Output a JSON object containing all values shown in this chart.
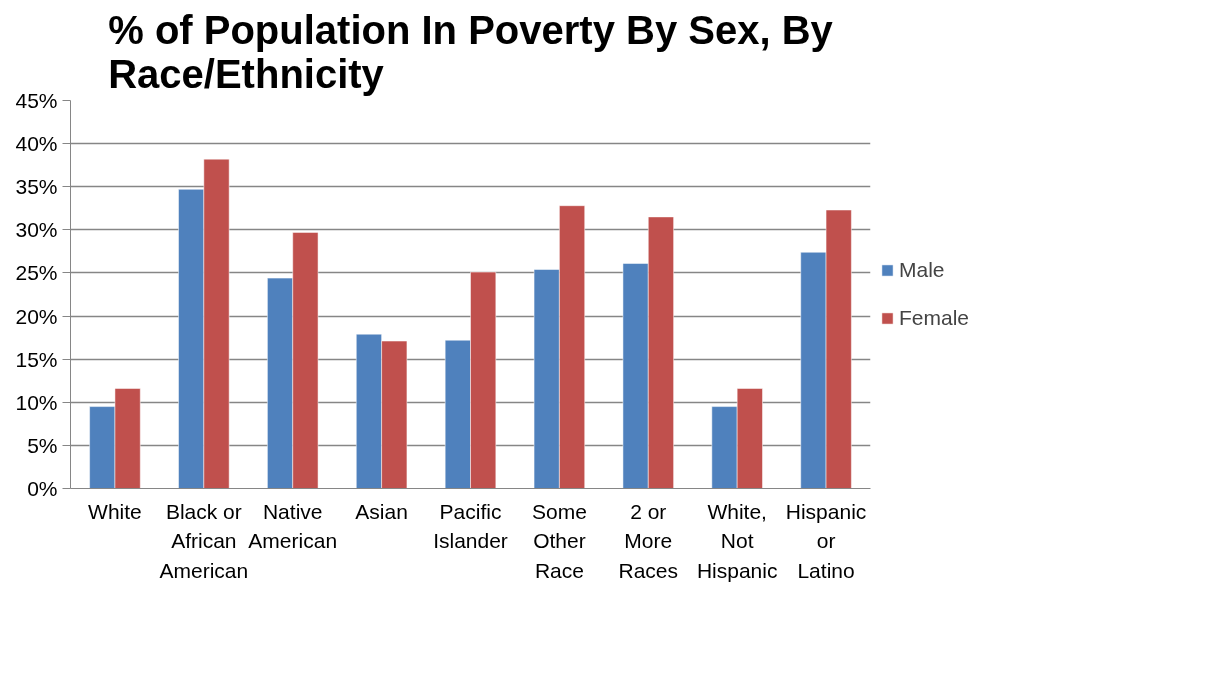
{
  "chart_data": {
    "type": "bar",
    "title": "% of Population In Poverty By Sex, By Race/Ethnicity",
    "categories": [
      "White",
      "Black or African American",
      "Native American",
      "Asian",
      "Pacific Islander",
      "Some Other Race",
      "2 or More Races",
      "White, Not Hispanic",
      "Hispanic or Latino"
    ],
    "series": [
      {
        "name": "Male",
        "color": "#4f81bd",
        "values": [
          9.5,
          34.7,
          24.4,
          17.9,
          17.2,
          25.4,
          26.1,
          9.5,
          27.4
        ]
      },
      {
        "name": "Female",
        "color": "#c0504d",
        "values": [
          11.6,
          38.2,
          29.7,
          17.1,
          25.1,
          32.8,
          31.5,
          11.6,
          32.3
        ]
      }
    ],
    "ylim": [
      0,
      45
    ],
    "yticks": [
      {
        "value": 0,
        "label": "0%"
      },
      {
        "value": 5,
        "label": "5%"
      },
      {
        "value": 10,
        "label": "10%"
      },
      {
        "value": 15,
        "label": "15%"
      },
      {
        "value": 20,
        "label": "20%"
      },
      {
        "value": 25,
        "label": "25%"
      },
      {
        "value": 30,
        "label": "30%"
      },
      {
        "value": 35,
        "label": "35%"
      },
      {
        "value": 40,
        "label": "40%"
      },
      {
        "value": 45,
        "label": "45%"
      }
    ],
    "grid": "y",
    "legend": "right"
  }
}
